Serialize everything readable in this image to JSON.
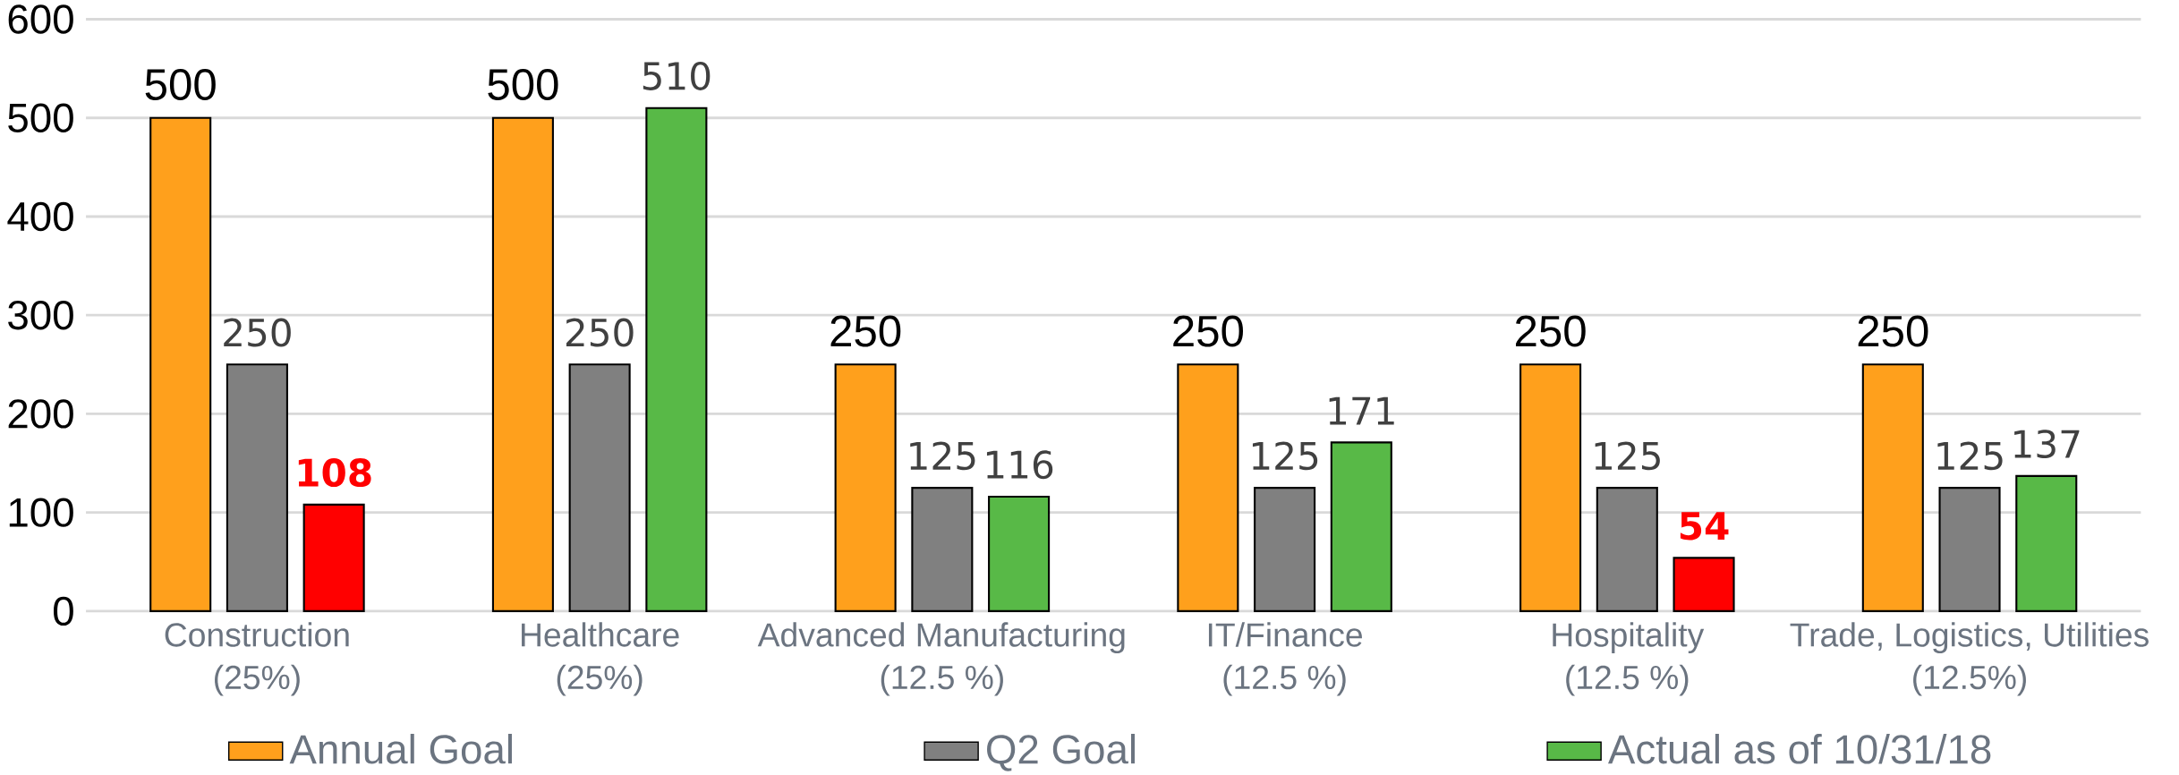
{
  "chart_data": {
    "type": "bar",
    "categories": [
      "Construction\n(25%)",
      "Healthcare\n(25%)",
      "Advanced Manufacturing\n(12.5 %)",
      "IT/Finance\n(12.5 %)",
      "Hospitality\n(12.5 %)",
      "Trade, Logistics, Utilities\n(12.5%)"
    ],
    "series": [
      {
        "name": "Annual Goal",
        "color": "#ffa01c",
        "values": [
          500,
          500,
          250,
          250,
          250,
          250
        ]
      },
      {
        "name": "Q2 Goal",
        "color": "#808080",
        "values": [
          250,
          250,
          125,
          125,
          125,
          125
        ]
      },
      {
        "name": "Actual as of 10/31/18",
        "color": "#58b947",
        "colors": [
          "#ff0000",
          "#58b947",
          "#58b947",
          "#58b947",
          "#ff0000",
          "#58b947"
        ],
        "values": [
          108,
          510,
          116,
          171,
          54,
          137
        ]
      }
    ],
    "ylim": [
      0,
      600
    ],
    "yticks": [
      0,
      100,
      200,
      300,
      400,
      500,
      600
    ],
    "grid": "y",
    "legend": "bottom",
    "data_labels": true
  }
}
